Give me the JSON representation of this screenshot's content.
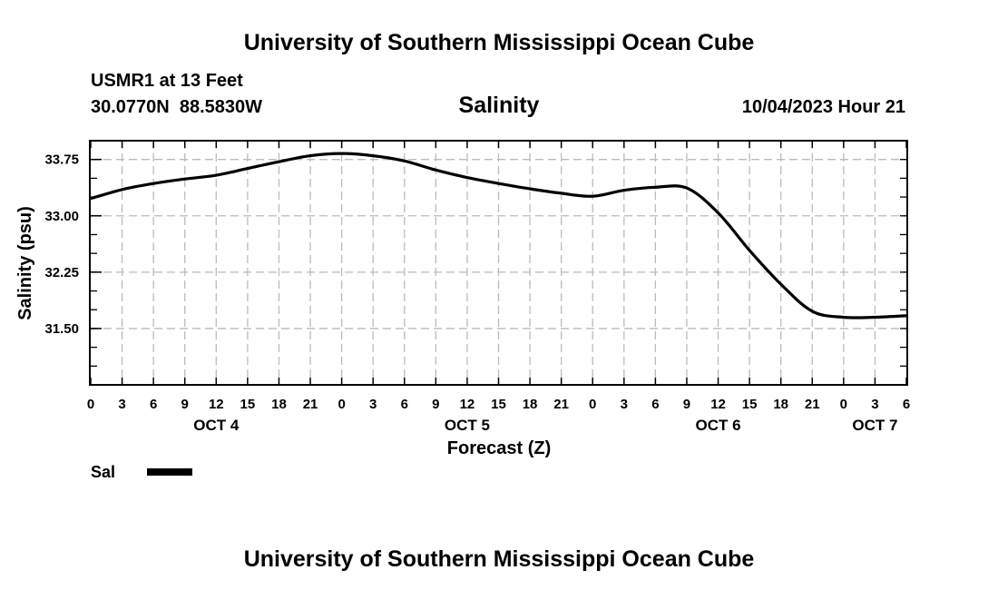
{
  "header": {
    "title": "University of Southern Mississippi Ocean Cube",
    "station": "USMR1 at 13 Feet",
    "coords": "30.0770N  88.5830W",
    "date": "10/04/2023 Hour 21"
  },
  "footer": {
    "title": "University of Southern Mississippi Ocean Cube"
  },
  "chart_data": {
    "type": "line",
    "title": "Salinity",
    "xlabel": "Forecast (Z)",
    "ylabel": "Salinity (psu)",
    "xlim": [
      0,
      78
    ],
    "ylim": [
      30.75,
      34.0
    ],
    "x_ticks": [
      0,
      3,
      6,
      9,
      12,
      15,
      18,
      21,
      24,
      27,
      30,
      33,
      36,
      39,
      42,
      45,
      48,
      51,
      54,
      57,
      60,
      63,
      66,
      69,
      72,
      75,
      78
    ],
    "x_tick_labels": [
      "0",
      "3",
      "6",
      "9",
      "12",
      "15",
      "18",
      "21",
      "0",
      "3",
      "6",
      "9",
      "12",
      "15",
      "18",
      "21",
      "0",
      "3",
      "6",
      "9",
      "12",
      "15",
      "18",
      "21",
      "0",
      "3",
      "6"
    ],
    "day_labels": [
      {
        "x": 12,
        "label": "OCT 4"
      },
      {
        "x": 36,
        "label": "OCT 5"
      },
      {
        "x": 60,
        "label": "OCT 6"
      },
      {
        "x": 75,
        "label": "OCT 7"
      }
    ],
    "y_ticks": [
      31.5,
      32.25,
      33.0,
      33.75
    ],
    "y_tick_labels": [
      "31.50",
      "32.25",
      "33.00",
      "33.75"
    ],
    "grid": true,
    "legend": [
      {
        "label": "Sal",
        "color": "#000000"
      }
    ],
    "series": [
      {
        "name": "Sal",
        "color": "#000000",
        "x": [
          0,
          3,
          6,
          9,
          12,
          15,
          18,
          21,
          24,
          27,
          30,
          33,
          36,
          39,
          42,
          45,
          48,
          51,
          54,
          57,
          60,
          63,
          66,
          69,
          72,
          75,
          78
        ],
        "values": [
          33.23,
          33.35,
          33.43,
          33.49,
          33.54,
          33.63,
          33.72,
          33.8,
          33.83,
          33.8,
          33.73,
          33.61,
          33.51,
          33.43,
          33.36,
          33.3,
          33.26,
          33.34,
          33.38,
          33.37,
          33.04,
          32.54,
          32.09,
          31.73,
          31.65,
          31.65,
          31.67
        ]
      }
    ]
  }
}
